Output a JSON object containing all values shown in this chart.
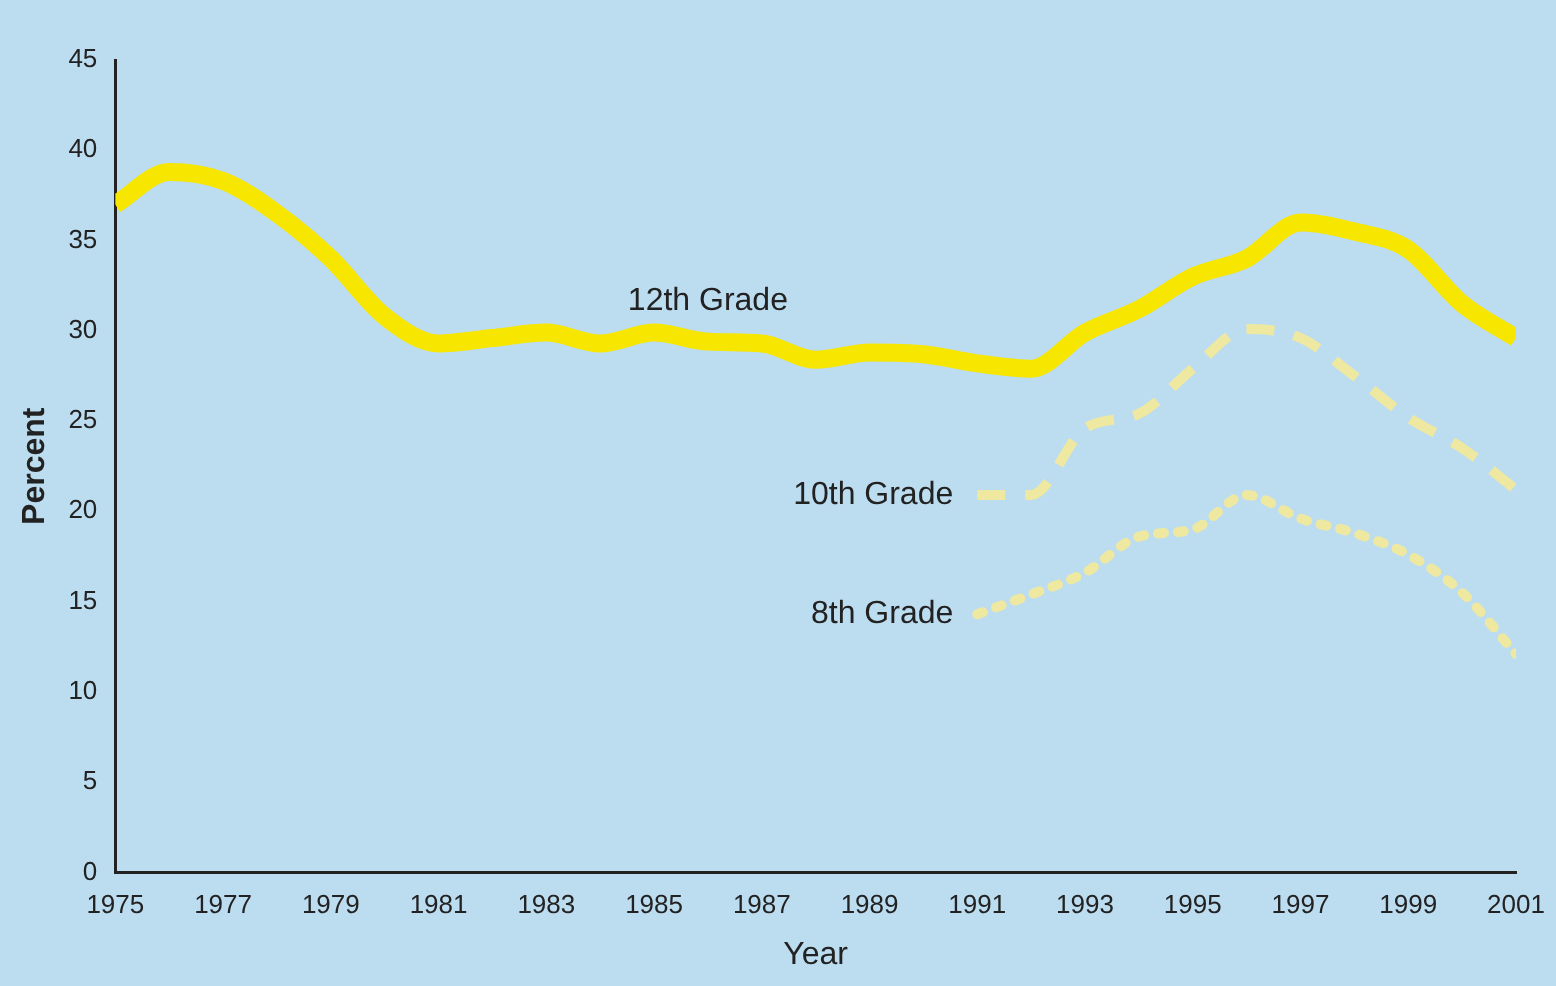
{
  "chart_data": {
    "type": "line",
    "xlabel": "Year",
    "ylabel": "Percent",
    "xlim": [
      1975,
      2001
    ],
    "xticks": [
      1975,
      1977,
      1979,
      1981,
      1983,
      1985,
      1987,
      1989,
      1991,
      1993,
      1995,
      1997,
      1999,
      2001
    ],
    "ylim": [
      0,
      45
    ],
    "yticks": [
      0,
      5,
      10,
      15,
      20,
      25,
      30,
      35,
      40,
      45
    ],
    "grid": false,
    "legend": false,
    "series": [
      {
        "name": "12th Grade",
        "color": "#f7e600",
        "line_style": "solid",
        "x": [
          1975,
          1976,
          1977,
          1978,
          1979,
          1980,
          1981,
          1982,
          1983,
          1984,
          1985,
          1986,
          1987,
          1988,
          1989,
          1990,
          1991,
          1992,
          1993,
          1994,
          1995,
          1996,
          1997,
          1998,
          1999,
          2000,
          2001
        ],
        "values": [
          37,
          38.8,
          38.3,
          36.5,
          34,
          30.8,
          29.3,
          29.6,
          29.9,
          29.3,
          29.9,
          29.4,
          29.3,
          28.4,
          28.8,
          28.7,
          28.2,
          27.9,
          29.9,
          31.2,
          33,
          34,
          36,
          35.5,
          34.5,
          31.5,
          29.6
        ]
      },
      {
        "name": "10th Grade",
        "color": "#efe8a0",
        "line_style": "dashed",
        "x": [
          1991,
          1992,
          1993,
          1994,
          1995,
          1996,
          1997,
          1998,
          1999,
          2000,
          2001
        ],
        "values": [
          20.9,
          20.9,
          24.6,
          25.4,
          27.9,
          30.1,
          29.6,
          27.5,
          25.2,
          23.5,
          21.2
        ]
      },
      {
        "name": "8th Grade",
        "color": "#efe8a0",
        "line_style": "dotted",
        "x": [
          1991,
          1992,
          1993,
          1994,
          1995,
          1996,
          1997,
          1998,
          1999,
          2000,
          2001
        ],
        "values": [
          14.3,
          15.4,
          16.6,
          18.6,
          19,
          20.9,
          19.6,
          18.8,
          17.6,
          15.5,
          12.1
        ]
      }
    ]
  }
}
